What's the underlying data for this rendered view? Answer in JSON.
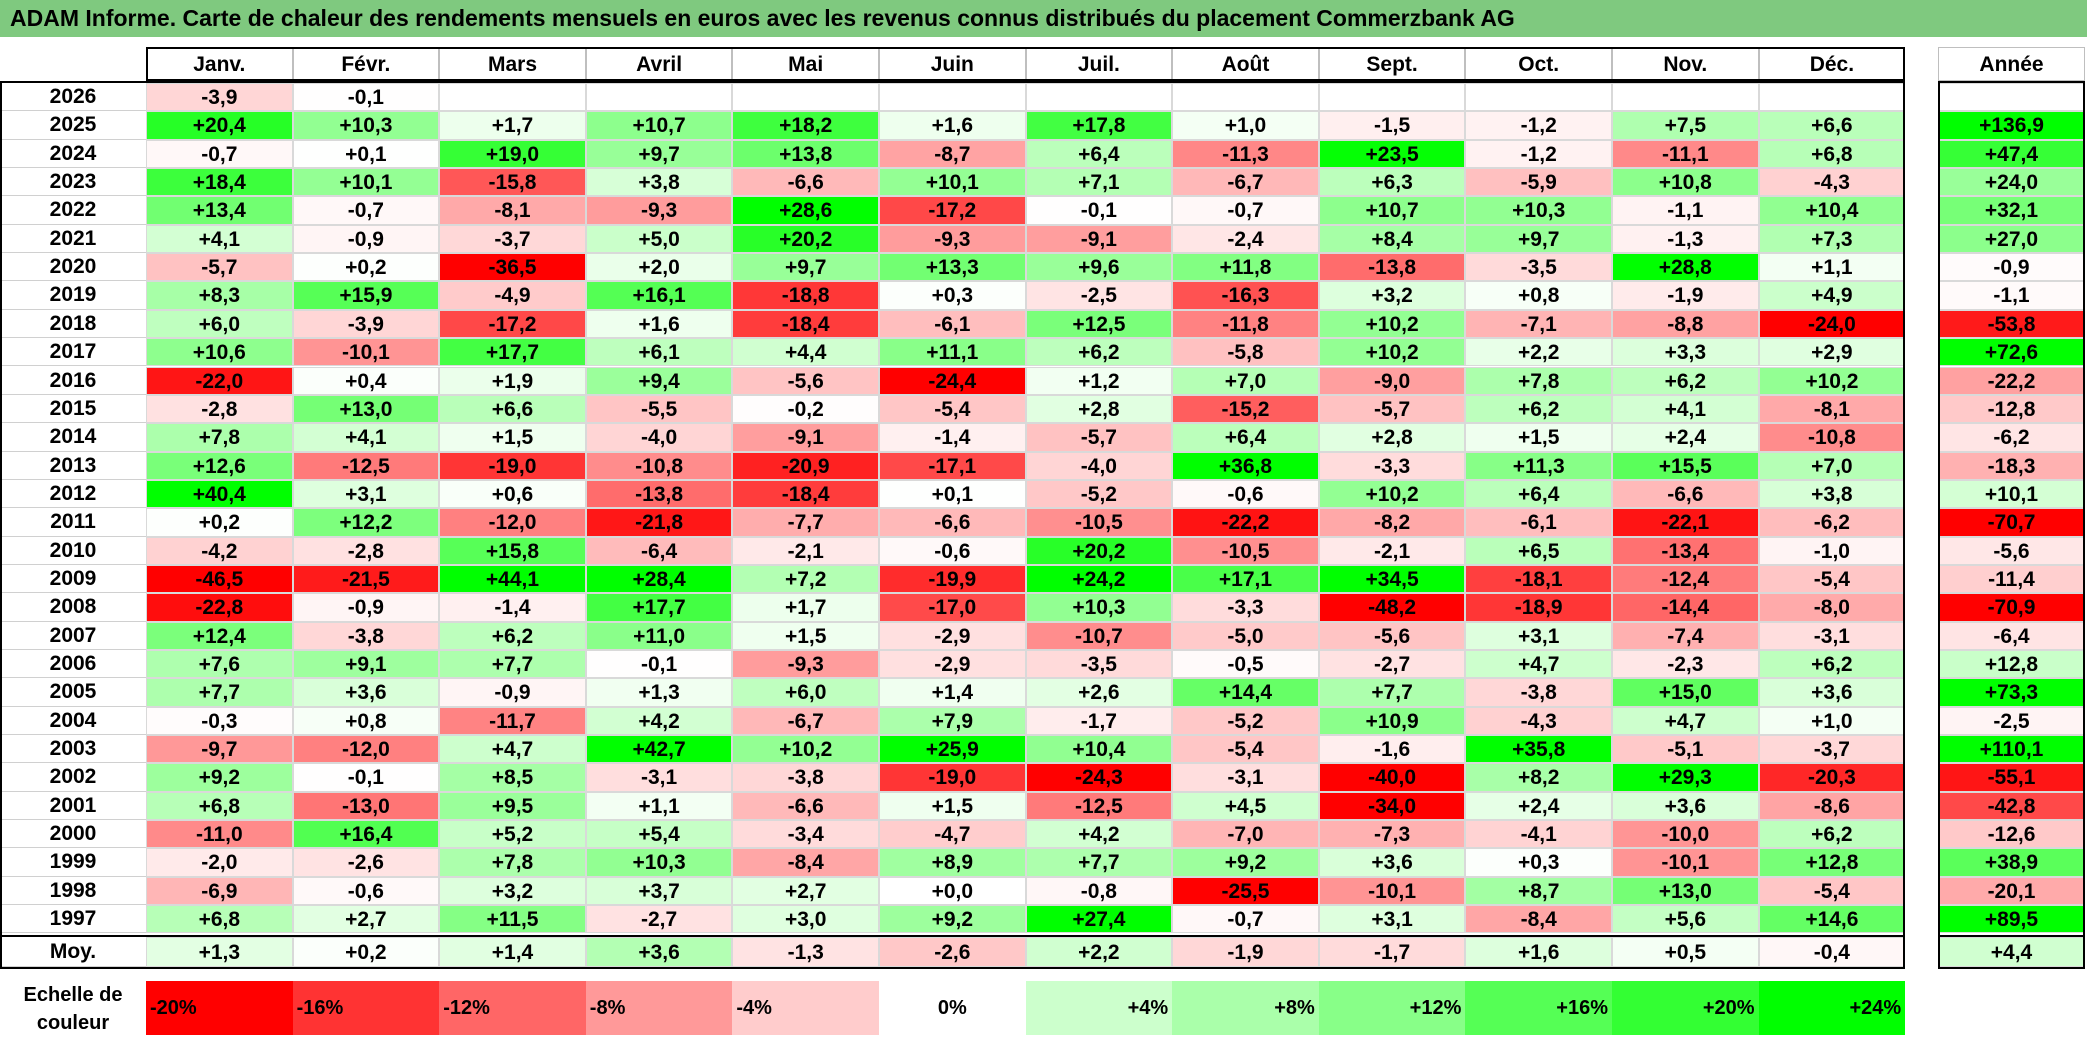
{
  "title": "ADAM Informe. Carte de chaleur des rendements mensuels en euros avec les revenus connus distribués du placement Commerzbank AG",
  "chart_data": {
    "type": "heatmap",
    "months": [
      "Janv.",
      "Févr.",
      "Mars",
      "Avril",
      "Mai",
      "Juin",
      "Juil.",
      "Août",
      "Sept.",
      "Oct.",
      "Nov.",
      "Déc."
    ],
    "annual_label": "Année",
    "average_label": "Moy.",
    "rows": [
      {
        "year": "2026",
        "values": [
          "-3,9",
          "-0,1",
          "",
          "",
          "",
          "",
          "",
          "",
          "",
          "",
          "",
          ""
        ],
        "annual": ""
      },
      {
        "year": "2025",
        "values": [
          "+20,4",
          "+10,3",
          "+1,7",
          "+10,7",
          "+18,2",
          "+1,6",
          "+17,8",
          "+1,0",
          "-1,5",
          "-1,2",
          "+7,5",
          "+6,6"
        ],
        "annual": "+136,9"
      },
      {
        "year": "2024",
        "values": [
          "-0,7",
          "+0,1",
          "+19,0",
          "+9,7",
          "+13,8",
          "-8,7",
          "+6,4",
          "-11,3",
          "+23,5",
          "-1,2",
          "-11,1",
          "+6,8"
        ],
        "annual": "+47,4"
      },
      {
        "year": "2023",
        "values": [
          "+18,4",
          "+10,1",
          "-15,8",
          "+3,8",
          "-6,6",
          "+10,1",
          "+7,1",
          "-6,7",
          "+6,3",
          "-5,9",
          "+10,8",
          "-4,3"
        ],
        "annual": "+24,0"
      },
      {
        "year": "2022",
        "values": [
          "+13,4",
          "-0,7",
          "-8,1",
          "-9,3",
          "+28,6",
          "-17,2",
          "-0,1",
          "-0,7",
          "+10,7",
          "+10,3",
          "-1,1",
          "+10,4"
        ],
        "annual": "+32,1"
      },
      {
        "year": "2021",
        "values": [
          "+4,1",
          "-0,9",
          "-3,7",
          "+5,0",
          "+20,2",
          "-9,3",
          "-9,1",
          "-2,4",
          "+8,4",
          "+9,7",
          "-1,3",
          "+7,3"
        ],
        "annual": "+27,0"
      },
      {
        "year": "2020",
        "values": [
          "-5,7",
          "+0,2",
          "-36,5",
          "+2,0",
          "+9,7",
          "+13,3",
          "+9,6",
          "+11,8",
          "-13,8",
          "-3,5",
          "+28,8",
          "+1,1"
        ],
        "annual": "-0,9"
      },
      {
        "year": "2019",
        "values": [
          "+8,3",
          "+15,9",
          "-4,9",
          "+16,1",
          "-18,8",
          "+0,3",
          "-2,5",
          "-16,3",
          "+3,2",
          "+0,8",
          "-1,9",
          "+4,9"
        ],
        "annual": "-1,1"
      },
      {
        "year": "2018",
        "values": [
          "+6,0",
          "-3,9",
          "-17,2",
          "+1,6",
          "-18,4",
          "-6,1",
          "+12,5",
          "-11,8",
          "+10,2",
          "-7,1",
          "-8,8",
          "-24,0"
        ],
        "annual": "-53,8"
      },
      {
        "year": "2017",
        "values": [
          "+10,6",
          "-10,1",
          "+17,7",
          "+6,1",
          "+4,4",
          "+11,1",
          "+6,2",
          "-5,8",
          "+10,2",
          "+2,2",
          "+3,3",
          "+2,9"
        ],
        "annual": "+72,6"
      },
      {
        "year": "2016",
        "values": [
          "-22,0",
          "+0,4",
          "+1,9",
          "+9,4",
          "-5,6",
          "-24,4",
          "+1,2",
          "+7,0",
          "-9,0",
          "+7,8",
          "+6,2",
          "+10,2"
        ],
        "annual": "-22,2"
      },
      {
        "year": "2015",
        "values": [
          "-2,8",
          "+13,0",
          "+6,6",
          "-5,5",
          "-0,2",
          "-5,4",
          "+2,8",
          "-15,2",
          "-5,7",
          "+6,2",
          "+4,1",
          "-8,1"
        ],
        "annual": "-12,8"
      },
      {
        "year": "2014",
        "values": [
          "+7,8",
          "+4,1",
          "+1,5",
          "-4,0",
          "-9,1",
          "-1,4",
          "-5,7",
          "+6,4",
          "+2,8",
          "+1,5",
          "+2,4",
          "-10,8"
        ],
        "annual": "-6,2"
      },
      {
        "year": "2013",
        "values": [
          "+12,6",
          "-12,5",
          "-19,0",
          "-10,8",
          "-20,9",
          "-17,1",
          "-4,0",
          "+36,8",
          "-3,3",
          "+11,3",
          "+15,5",
          "+7,0"
        ],
        "annual": "-18,3"
      },
      {
        "year": "2012",
        "values": [
          "+40,4",
          "+3,1",
          "+0,6",
          "-13,8",
          "-18,4",
          "+0,1",
          "-5,2",
          "-0,6",
          "+10,2",
          "+6,4",
          "-6,6",
          "+3,8"
        ],
        "annual": "+10,1"
      },
      {
        "year": "2011",
        "values": [
          "+0,2",
          "+12,2",
          "-12,0",
          "-21,8",
          "-7,7",
          "-6,6",
          "-10,5",
          "-22,2",
          "-8,2",
          "-6,1",
          "-22,1",
          "-6,2"
        ],
        "annual": "-70,7"
      },
      {
        "year": "2010",
        "values": [
          "-4,2",
          "-2,8",
          "+15,8",
          "-6,4",
          "-2,1",
          "-0,6",
          "+20,2",
          "-10,5",
          "-2,1",
          "+6,5",
          "-13,4",
          "-1,0"
        ],
        "annual": "-5,6"
      },
      {
        "year": "2009",
        "values": [
          "-46,5",
          "-21,5",
          "+44,1",
          "+28,4",
          "+7,2",
          "-19,9",
          "+24,2",
          "+17,1",
          "+34,5",
          "-18,1",
          "-12,4",
          "-5,4"
        ],
        "annual": "-11,4"
      },
      {
        "year": "2008",
        "values": [
          "-22,8",
          "-0,9",
          "-1,4",
          "+17,7",
          "+1,7",
          "-17,0",
          "+10,3",
          "-3,3",
          "-48,2",
          "-18,9",
          "-14,4",
          "-8,0"
        ],
        "annual": "-70,9"
      },
      {
        "year": "2007",
        "values": [
          "+12,4",
          "-3,8",
          "+6,2",
          "+11,0",
          "+1,5",
          "-2,9",
          "-10,7",
          "-5,0",
          "-5,6",
          "+3,1",
          "-7,4",
          "-3,1"
        ],
        "annual": "-6,4"
      },
      {
        "year": "2006",
        "values": [
          "+7,6",
          "+9,1",
          "+7,7",
          "-0,1",
          "-9,3",
          "-2,9",
          "-3,5",
          "-0,5",
          "-2,7",
          "+4,7",
          "-2,3",
          "+6,2"
        ],
        "annual": "+12,8"
      },
      {
        "year": "2005",
        "values": [
          "+7,7",
          "+3,6",
          "-0,9",
          "+1,3",
          "+6,0",
          "+1,4",
          "+2,6",
          "+14,4",
          "+7,7",
          "-3,8",
          "+15,0",
          "+3,6"
        ],
        "annual": "+73,3"
      },
      {
        "year": "2004",
        "values": [
          "-0,3",
          "+0,8",
          "-11,7",
          "+4,2",
          "-6,7",
          "+7,9",
          "-1,7",
          "-5,2",
          "+10,9",
          "-4,3",
          "+4,7",
          "+1,0"
        ],
        "annual": "-2,5"
      },
      {
        "year": "2003",
        "values": [
          "-9,7",
          "-12,0",
          "+4,7",
          "+42,7",
          "+10,2",
          "+25,9",
          "+10,4",
          "-5,4",
          "-1,6",
          "+35,8",
          "-5,1",
          "-3,7"
        ],
        "annual": "+110,1"
      },
      {
        "year": "2002",
        "values": [
          "+9,2",
          "-0,1",
          "+8,5",
          "-3,1",
          "-3,8",
          "-19,0",
          "-24,3",
          "-3,1",
          "-40,0",
          "+8,2",
          "+29,3",
          "-20,3"
        ],
        "annual": "-55,1"
      },
      {
        "year": "2001",
        "values": [
          "+6,8",
          "-13,0",
          "+9,5",
          "+1,1",
          "-6,6",
          "+1,5",
          "-12,5",
          "+4,5",
          "-34,0",
          "+2,4",
          "+3,6",
          "-8,6"
        ],
        "annual": "-42,8"
      },
      {
        "year": "2000",
        "values": [
          "-11,0",
          "+16,4",
          "+5,2",
          "+5,4",
          "-3,4",
          "-4,7",
          "+4,2",
          "-7,0",
          "-7,3",
          "-4,1",
          "-10,0",
          "+6,2"
        ],
        "annual": "-12,6"
      },
      {
        "year": "1999",
        "values": [
          "-2,0",
          "-2,6",
          "+7,8",
          "+10,3",
          "-8,4",
          "+8,9",
          "+7,7",
          "+9,2",
          "+3,6",
          "+0,3",
          "-10,1",
          "+12,8"
        ],
        "annual": "+38,9"
      },
      {
        "year": "1998",
        "values": [
          "-6,9",
          "-0,6",
          "+3,2",
          "+3,7",
          "+2,7",
          "+0,0",
          "-0,8",
          "-25,5",
          "-10,1",
          "+8,7",
          "+13,0",
          "-5,4"
        ],
        "annual": "-20,1"
      },
      {
        "year": "1997",
        "values": [
          "+6,8",
          "+2,7",
          "+11,5",
          "-2,7",
          "+3,0",
          "+9,2",
          "+27,4",
          "-0,7",
          "+3,1",
          "-8,4",
          "+5,6",
          "+14,6"
        ],
        "annual": "+89,5"
      }
    ],
    "average": {
      "values": [
        "+1,3",
        "+0,2",
        "+1,4",
        "+3,6",
        "-1,3",
        "-2,6",
        "+2,2",
        "-1,9",
        "-1,7",
        "+1,6",
        "+0,5",
        "-0,4"
      ],
      "annual": "+4,4"
    },
    "legend": {
      "label_line1": "Echelle de",
      "label_line2": "couleur",
      "steps": [
        {
          "label": "-20%",
          "color": "#ff0000"
        },
        {
          "label": "-16%",
          "color": "#ff3333"
        },
        {
          "label": "-12%",
          "color": "#ff6666"
        },
        {
          "label": "-8%",
          "color": "#ff9999"
        },
        {
          "label": "-4%",
          "color": "#ffcccc"
        },
        {
          "label": "0%",
          "color": "#ffffff"
        },
        {
          "label": "+4%",
          "color": "#ccffcc"
        },
        {
          "label": "+8%",
          "color": "#aaffaa"
        },
        {
          "label": "+12%",
          "color": "#88ff88"
        },
        {
          "label": "+16%",
          "color": "#55ff55"
        },
        {
          "label": "+20%",
          "color": "#33ff33"
        },
        {
          "label": "+24%",
          "color": "#00ff00"
        }
      ]
    }
  }
}
